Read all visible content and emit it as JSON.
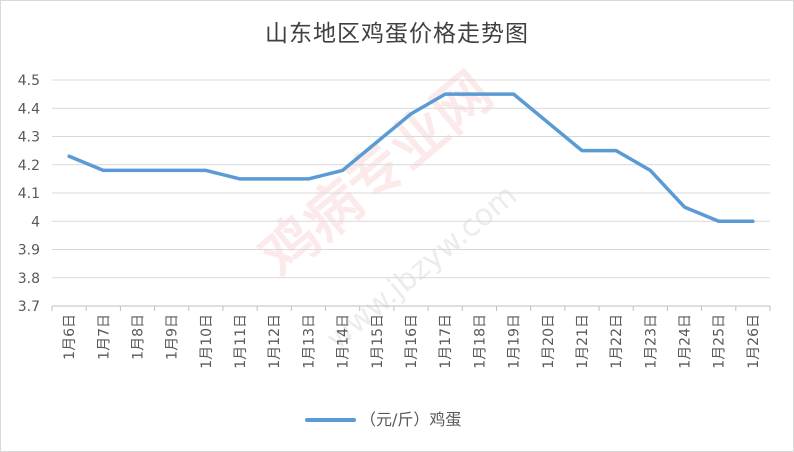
{
  "chart_data": {
    "type": "line",
    "title": "山东地区鸡蛋价格走势图",
    "categories": [
      "1月6日",
      "1月7日",
      "1月8日",
      "1月9日",
      "1月10日",
      "1月11日",
      "1月12日",
      "1月13日",
      "1月14日",
      "1月15日",
      "1月16日",
      "1月17日",
      "1月18日",
      "1月19日",
      "1月20日",
      "1月21日",
      "1月22日",
      "1月23日",
      "1月24日",
      "1月25日",
      "1月26日"
    ],
    "series": [
      {
        "name": "（元/斤）鸡蛋",
        "values": [
          4.23,
          4.18,
          4.18,
          4.18,
          4.18,
          4.15,
          4.15,
          4.15,
          4.18,
          4.28,
          4.38,
          4.45,
          4.45,
          4.45,
          4.35,
          4.25,
          4.25,
          4.18,
          4.05,
          4.0,
          4.0
        ],
        "color": "#5b9bd5"
      }
    ],
    "yticks": [
      "3.7",
      "3.8",
      "3.9",
      "4",
      "4.1",
      "4.2",
      "4.3",
      "4.4",
      "4.5"
    ],
    "ylim": [
      3.7,
      4.5
    ],
    "grid": true,
    "legend_position": "bottom",
    "watermark": "鸡病专业网",
    "watermark_url": "www.jbzyw.com"
  }
}
